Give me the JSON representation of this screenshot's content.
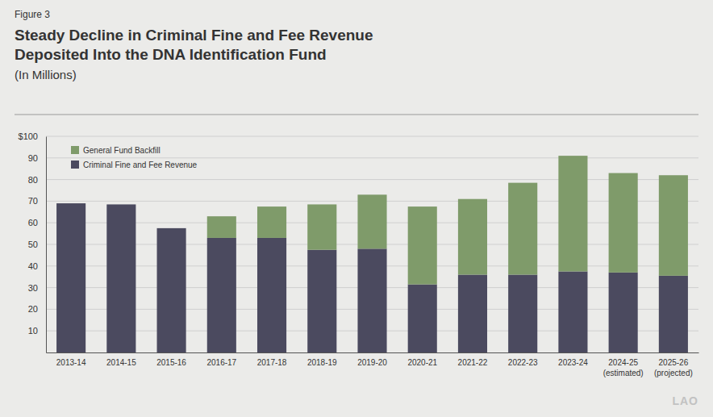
{
  "chart_data": {
    "type": "bar",
    "title": "Steady Decline in Criminal Fine and Fee Revenue\nDeposited Into the DNA Identification Fund",
    "subtitle": "(In Millions)",
    "annotations": [
      "Figure 3",
      "LAO"
    ],
    "categories": [
      "2013-14",
      "2014-15",
      "2015-16",
      "2016-17",
      "2017-18",
      "2018-19",
      "2019-20",
      "2020-21",
      "2021-22",
      "2022-23",
      "2023-24",
      "2024-25\n(estimated)",
      "2025-26\n(projected)"
    ],
    "series": [
      {
        "name": "Criminal Fine and Fee Revenue",
        "color": "#4b4a5f",
        "values": [
          69,
          68.5,
          57.5,
          53,
          53,
          47.5,
          48,
          31.5,
          36,
          36,
          37.5,
          37,
          35.5
        ]
      },
      {
        "name": "General Fund Backfill",
        "color": "#7f9b6a",
        "values": [
          0,
          0,
          0,
          10,
          14.5,
          21,
          25,
          36,
          35,
          42.5,
          53.5,
          46,
          46.5
        ]
      }
    ],
    "stacked": true,
    "ylim": [
      0,
      100
    ],
    "yticks": [
      10,
      20,
      30,
      40,
      50,
      60,
      70,
      80,
      90,
      {
        "value": 100,
        "label": "$100"
      }
    ],
    "grid": true,
    "legend": "top-left"
  }
}
